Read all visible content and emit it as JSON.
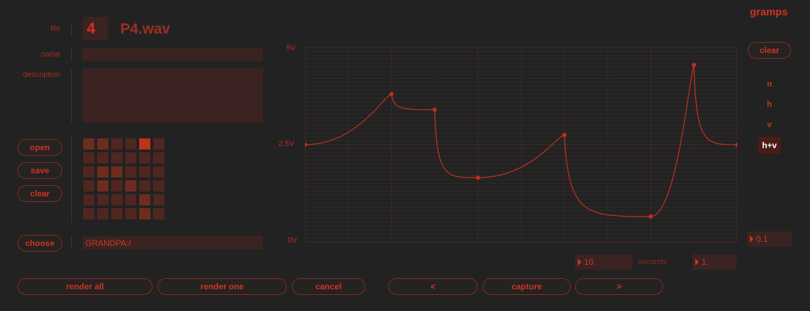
{
  "brand": "gramps",
  "file": {
    "label": "file",
    "number": "4",
    "filename": "P4.wav"
  },
  "name": {
    "label": "name",
    "value": ""
  },
  "description": {
    "label": "description",
    "value": ""
  },
  "buttons": {
    "open": "open",
    "save": "save",
    "clear": "clear",
    "choose": "choose",
    "clear_graph": "clear",
    "render_all": "render all",
    "render_one": "render one",
    "cancel": "cancel",
    "prev": "<",
    "capture": "capture",
    "next": ">"
  },
  "path": "GRANDPA:/",
  "grid": {
    "cols": 6,
    "rows": 6,
    "levels": [
      [
        2,
        2,
        1,
        1,
        3,
        1
      ],
      [
        1,
        1,
        1,
        1,
        1,
        1
      ],
      [
        1,
        2,
        2,
        1,
        1,
        1
      ],
      [
        1,
        2,
        1,
        2,
        1,
        1
      ],
      [
        1,
        1,
        1,
        1,
        2,
        1
      ],
      [
        1,
        1,
        1,
        1,
        2,
        1
      ]
    ],
    "colors": [
      "#3a2321",
      "#4f2620",
      "#6e2c1f",
      "#c0311a"
    ]
  },
  "graph": {
    "y_labels": {
      "top": "5V",
      "mid": "2.5V",
      "bottom": "0V"
    },
    "y_range": [
      0,
      5
    ],
    "x_range": [
      0,
      10
    ],
    "points": [
      {
        "x": 0,
        "y": 2.5
      },
      {
        "x": 2,
        "y": 3.8
      },
      {
        "x": 3,
        "y": 3.4
      },
      {
        "x": 4,
        "y": 1.65
      },
      {
        "x": 6,
        "y": 2.75
      },
      {
        "x": 8,
        "y": 0.65
      },
      {
        "x": 9,
        "y": 4.55
      },
      {
        "x": 10,
        "y": 2.5
      }
    ],
    "accent": "#c0301c"
  },
  "modes": [
    "n",
    "h",
    "v",
    "h+v"
  ],
  "active_mode": "h+v",
  "step_value": "0.1",
  "duration": {
    "value": "10.",
    "unit": "seconds",
    "second_value": "1."
  }
}
